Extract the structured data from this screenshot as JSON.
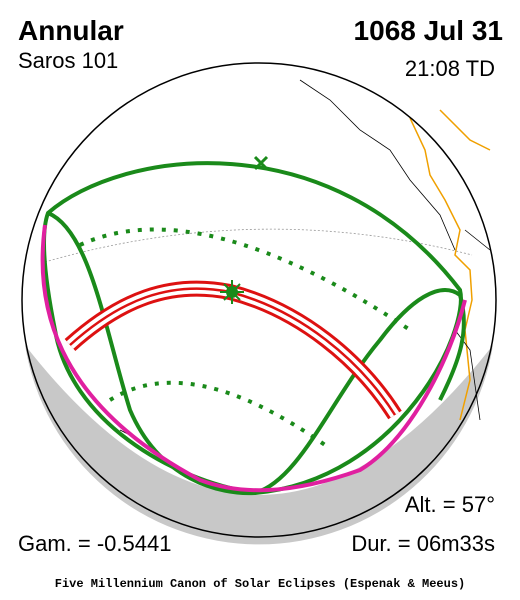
{
  "header": {
    "title": "Annular",
    "saros": "Saros 101",
    "date": "1068 Jul 31",
    "time": "21:08 TD"
  },
  "stats": {
    "altitude": "Alt. = 57°",
    "gamma": "Gam. = -0.5441",
    "duration": "Dur. = 06m33s"
  },
  "footer": "Five Millennium Canon of Solar Eclipses (Espenak & Meeus)"
}
